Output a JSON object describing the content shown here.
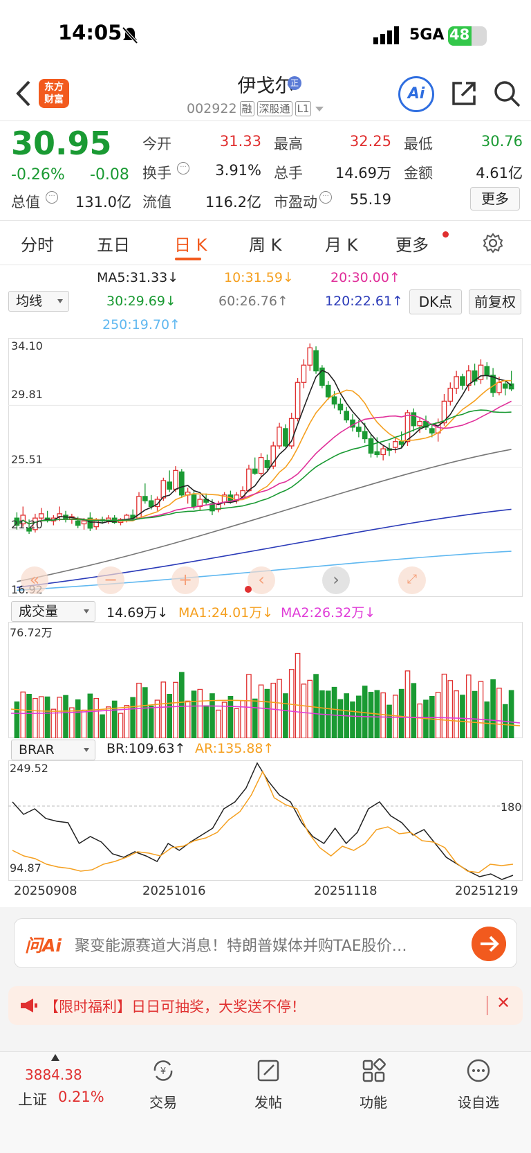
{
  "status_bar": {
    "time": "14:05",
    "network": "5GA",
    "battery": "48"
  },
  "header": {
    "logo_text": "东方\n财富",
    "stock_name": "伊戈尔",
    "stock_code": "002922",
    "tags": [
      "融",
      "深股通",
      "L1"
    ],
    "ai_label": "Ai"
  },
  "quote": {
    "price": "30.95",
    "change_pct": "-0.26%",
    "change_abs": "-0.08",
    "fields": [
      {
        "label": "今开",
        "value": "31.33",
        "color": "red"
      },
      {
        "label": "最高",
        "value": "32.25",
        "color": "red"
      },
      {
        "label": "最低",
        "value": "30.76",
        "color": "green"
      },
      {
        "label": "换手",
        "value": "3.91%",
        "color": "plain"
      },
      {
        "label": "总手",
        "value": "14.69万",
        "color": "plain"
      },
      {
        "label": "金额",
        "value": "4.61亿",
        "color": "plain"
      },
      {
        "label": "总值",
        "value": "131.0亿",
        "color": "plain"
      },
      {
        "label": "流值",
        "value": "116.2亿",
        "color": "plain"
      },
      {
        "label": "市盈动",
        "value": "55.19",
        "color": "plain"
      }
    ],
    "more_label": "更多"
  },
  "tabs": [
    "分时",
    "五日",
    "日 K",
    "周 K",
    "月 K",
    "更多"
  ],
  "active_tab": "日 K",
  "ma": {
    "dropdown": "均线",
    "ma5": "MA5:31.33↓",
    "ma10": "10:31.59↓",
    "ma20": "20:30.00↑",
    "ma30": "30:29.69↓",
    "ma60": "60:26.76↑",
    "ma120": "120:22.61↑",
    "ma250": "250:19.70↑",
    "dk_label": "DK点",
    "fq_label": "前复权",
    "colors": {
      "ma5": "#222222",
      "ma10": "#f5a020",
      "ma20": "#e0309a",
      "ma30": "#1a9a33",
      "ma60": "#777777",
      "ma120": "#2a3ab8",
      "ma250": "#60b8f0"
    }
  },
  "price_axis": [
    "34.10",
    "29.81",
    "25.51",
    "21.20",
    "16.92"
  ],
  "volume": {
    "dropdown": "成交量",
    "value": "14.69万↓",
    "ma1": "MA1:24.01万↓",
    "ma2": "MA2:26.32万↓",
    "axis_max": "76.72万"
  },
  "brar": {
    "dropdown": "BRAR",
    "br": "BR:109.63↑",
    "ar": "AR:135.88↑",
    "axis_max": "249.52",
    "axis_ref": "180",
    "axis_min": "94.87"
  },
  "dates": [
    "20250908",
    "20251016",
    "20251118",
    "20251219"
  ],
  "chart_data": {
    "type": "candlestick",
    "y_range": [
      16.92,
      34.1
    ],
    "candles_ohlc": [
      [
        22.0,
        22.4,
        21.2,
        21.5
      ],
      [
        21.6,
        22.8,
        21.4,
        22.2
      ],
      [
        21.3,
        21.9,
        20.9,
        21.1
      ],
      [
        21.2,
        22.3,
        21.0,
        22.0
      ],
      [
        22.0,
        22.7,
        21.6,
        22.3
      ],
      [
        22.0,
        22.5,
        21.7,
        21.9
      ],
      [
        21.8,
        22.2,
        21.5,
        22.0
      ],
      [
        22.1,
        22.8,
        21.8,
        22.3
      ],
      [
        22.2,
        22.5,
        21.7,
        21.9
      ],
      [
        21.9,
        22.3,
        21.6,
        22.1
      ],
      [
        21.8,
        22.1,
        21.3,
        21.5
      ],
      [
        21.6,
        22.0,
        21.2,
        21.8
      ],
      [
        22.0,
        22.4,
        21.1,
        21.3
      ],
      [
        21.4,
        22.0,
        21.2,
        21.9
      ],
      [
        21.9,
        22.1,
        21.6,
        21.8
      ],
      [
        21.8,
        22.2,
        21.6,
        22.0
      ],
      [
        22.0,
        22.2,
        21.6,
        21.7
      ],
      [
        21.7,
        22.0,
        21.5,
        21.9
      ],
      [
        21.9,
        22.3,
        21.7,
        22.2
      ],
      [
        22.2,
        22.6,
        21.9,
        22.0
      ],
      [
        22.0,
        23.8,
        21.9,
        23.5
      ],
      [
        23.5,
        24.4,
        23.0,
        23.2
      ],
      [
        23.2,
        23.6,
        22.6,
        22.8
      ],
      [
        22.8,
        23.5,
        22.5,
        23.3
      ],
      [
        23.4,
        24.8,
        23.2,
        24.6
      ],
      [
        24.5,
        25.3,
        23.8,
        24.0
      ],
      [
        24.0,
        25.6,
        23.8,
        25.3
      ],
      [
        25.2,
        25.4,
        23.4,
        23.6
      ],
      [
        23.6,
        24.1,
        23.0,
        23.8
      ],
      [
        23.6,
        23.9,
        22.6,
        22.8
      ],
      [
        22.8,
        23.6,
        22.5,
        23.3
      ],
      [
        23.3,
        23.7,
        22.9,
        23.1
      ],
      [
        23.0,
        23.3,
        22.2,
        22.5
      ],
      [
        22.6,
        23.2,
        22.4,
        23.0
      ],
      [
        23.1,
        23.8,
        22.9,
        23.6
      ],
      [
        23.6,
        23.9,
        23.0,
        23.2
      ],
      [
        23.2,
        23.8,
        23.0,
        23.6
      ],
      [
        23.5,
        24.2,
        23.3,
        23.9
      ],
      [
        23.9,
        25.7,
        23.8,
        25.4
      ],
      [
        25.4,
        26.2,
        25.0,
        25.1
      ],
      [
        25.1,
        26.5,
        24.9,
        26.2
      ],
      [
        26.0,
        26.4,
        25.3,
        25.5
      ],
      [
        25.6,
        27.3,
        25.4,
        27.0
      ],
      [
        27.0,
        28.6,
        26.8,
        28.3
      ],
      [
        28.2,
        28.5,
        26.9,
        27.0
      ],
      [
        27.0,
        29.3,
        26.8,
        28.9
      ],
      [
        28.9,
        31.7,
        28.7,
        31.4
      ],
      [
        31.4,
        33.0,
        31.0,
        32.6
      ],
      [
        32.6,
        34.1,
        32.2,
        33.8
      ],
      [
        33.6,
        33.9,
        32.0,
        32.2
      ],
      [
        32.4,
        32.6,
        31.0,
        31.2
      ],
      [
        31.2,
        31.5,
        30.2,
        30.4
      ],
      [
        30.4,
        30.8,
        29.6,
        29.9
      ],
      [
        29.9,
        30.3,
        29.2,
        29.5
      ],
      [
        29.4,
        29.7,
        28.6,
        28.8
      ],
      [
        28.8,
        29.2,
        28.0,
        28.3
      ],
      [
        28.3,
        28.8,
        27.6,
        28.0
      ],
      [
        28.0,
        28.6,
        27.2,
        27.5
      ],
      [
        27.5,
        27.8,
        26.2,
        26.5
      ],
      [
        26.6,
        27.6,
        26.2,
        26.4
      ],
      [
        26.4,
        27.0,
        26.0,
        26.8
      ],
      [
        26.8,
        27.2,
        26.3,
        26.7
      ],
      [
        26.9,
        27.6,
        26.5,
        27.3
      ],
      [
        27.3,
        28.0,
        26.9,
        27.1
      ],
      [
        27.3,
        29.5,
        27.0,
        29.3
      ],
      [
        29.3,
        29.6,
        28.0,
        28.4
      ],
      [
        28.4,
        29.0,
        27.9,
        28.7
      ],
      [
        28.7,
        29.1,
        28.1,
        28.3
      ],
      [
        28.2,
        28.5,
        27.6,
        27.9
      ],
      [
        27.9,
        28.9,
        27.3,
        28.6
      ],
      [
        28.6,
        30.6,
        28.4,
        30.1
      ],
      [
        30.1,
        31.4,
        29.8,
        31.0
      ],
      [
        31.0,
        32.2,
        30.6,
        31.8
      ],
      [
        31.8,
        32.0,
        30.9,
        31.2
      ],
      [
        31.2,
        32.6,
        30.8,
        32.2
      ],
      [
        32.2,
        32.7,
        31.2,
        31.5
      ],
      [
        31.6,
        33.0,
        31.3,
        32.6
      ],
      [
        32.5,
        32.8,
        31.6,
        31.9
      ],
      [
        31.9,
        32.4,
        30.4,
        30.7
      ],
      [
        30.7,
        31.8,
        30.5,
        31.4
      ],
      [
        31.3,
        31.5,
        30.5,
        31.0
      ],
      [
        31.3,
        32.2,
        30.8,
        30.95
      ]
    ],
    "volume_unit": "万",
    "volume_max": 76.72,
    "br_range": [
      94.87,
      249.52
    ]
  },
  "ai_bar": {
    "logo": "问Ai",
    "news": "聚变能源赛道大消息！特朗普媒体并购TAE股价…"
  },
  "promo": {
    "text": "【限时福利】日日可抽奖，大奖送不停！"
  },
  "bottom_nav": {
    "index_value": "3884.38",
    "index_name": "上证",
    "index_change": "0.21%",
    "items": [
      "交易",
      "发帖",
      "功能",
      "设自选"
    ]
  }
}
